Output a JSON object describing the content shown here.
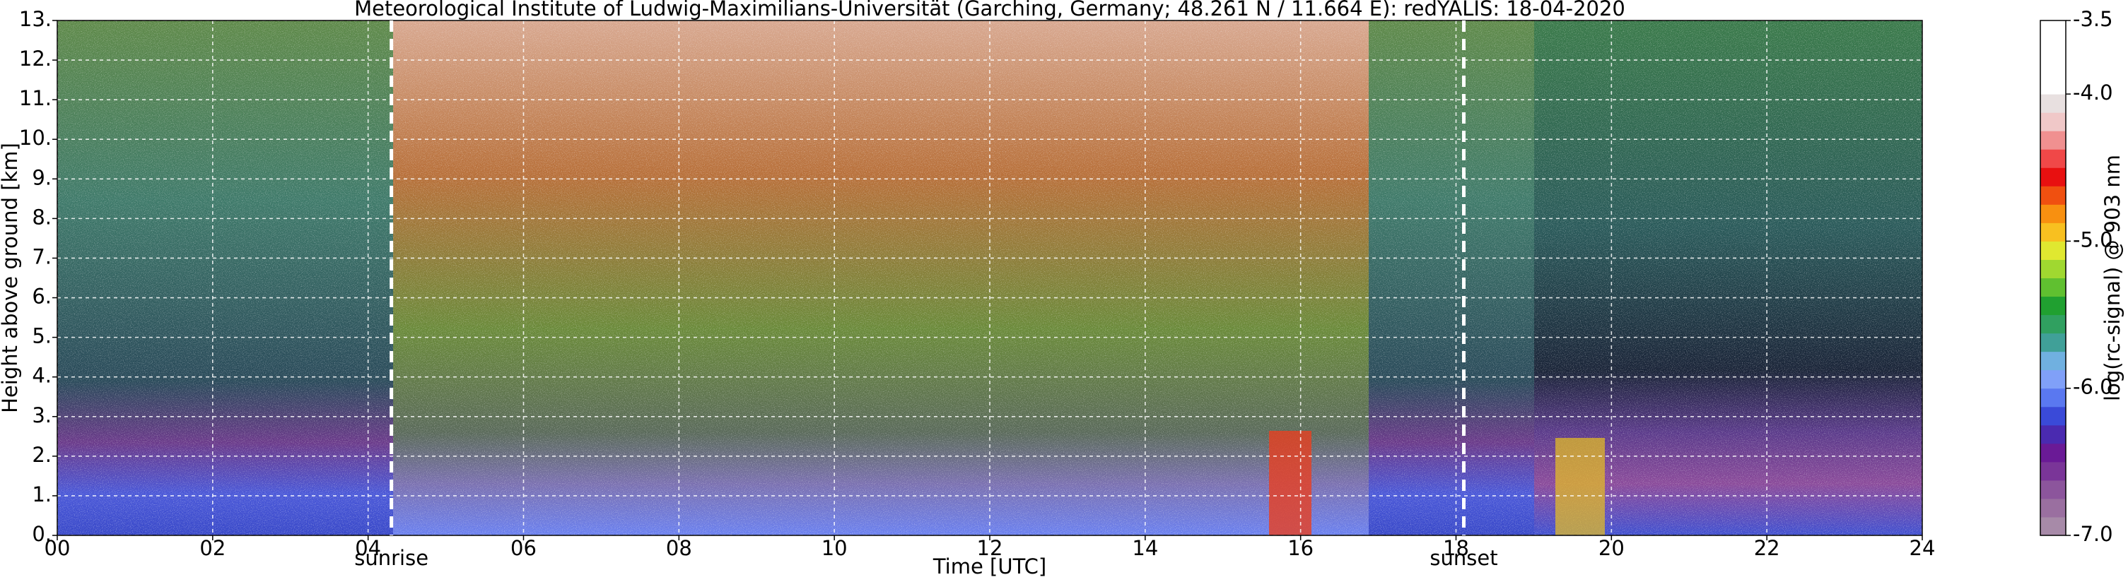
{
  "chart_data": {
    "type": "heatmap",
    "title": "Meteorological Institute of Ludwig-Maximilians-Universität (Garching, Germany; 48.261 N / 11.664 E):    redYALIS: 18-04-2020",
    "x_label": "Time [UTC]",
    "y_label": "Height above ground [km]",
    "xlim": [
      0,
      24
    ],
    "xticks": [
      {
        "value": 0,
        "label": "00"
      },
      {
        "value": 2,
        "label": "02"
      },
      {
        "value": 4,
        "label": "04"
      },
      {
        "value": 6,
        "label": "06"
      },
      {
        "value": 8,
        "label": "08"
      },
      10,
      12,
      14,
      16,
      18,
      20,
      22,
      24
    ],
    "ylim": [
      0,
      13
    ],
    "yticks": [
      {
        "value": 0,
        "label": "0."
      },
      {
        "value": 1,
        "label": "1."
      },
      {
        "value": 2,
        "label": "2."
      },
      {
        "value": 3,
        "label": "3."
      },
      {
        "value": 4,
        "label": "4."
      },
      {
        "value": 5,
        "label": "5."
      },
      {
        "value": 6,
        "label": "6."
      },
      {
        "value": 7,
        "label": "7."
      },
      {
        "value": 8,
        "label": "8."
      },
      {
        "value": 9,
        "label": "9."
      },
      {
        "value": 10,
        "label": "10."
      },
      {
        "value": 11,
        "label": "11."
      },
      {
        "value": 12,
        "label": "12."
      },
      {
        "value": 13,
        "label": "13."
      }
    ],
    "grid": true,
    "markers": [
      {
        "x": 4.3,
        "label": "sunrise"
      },
      {
        "x": 18.1,
        "label": "sunset"
      }
    ],
    "colorbar": {
      "label": "log(rc-signal) @ 903 nm",
      "lim": [
        -7,
        -3.5
      ],
      "ticks": [
        {
          "value": -7,
          "label": "-7.0"
        },
        {
          "value": -6,
          "label": "-6.0"
        },
        {
          "value": -5,
          "label": "-5.0"
        },
        {
          "value": -4,
          "label": "-4.0"
        },
        -3.5
      ],
      "colors": [
        "#a78aa8",
        "#9a6fa0",
        "#8c559c",
        "#7a3598",
        "#6a1a96",
        "#4a2ab0",
        "#3a4ad8",
        "#5a78f0",
        "#80a0f8",
        "#70b0e0",
        "#40a098",
        "#30a060",
        "#20a030",
        "#60c030",
        "#a0d830",
        "#e0e830",
        "#f8c020",
        "#f89010",
        "#f05010",
        "#e81010",
        "#f04848",
        "#f09090",
        "#f0c8c8",
        "#e8e0e0",
        "#ffffff",
        "#ffffff",
        "#ffffff",
        "#ffffff"
      ]
    }
  }
}
